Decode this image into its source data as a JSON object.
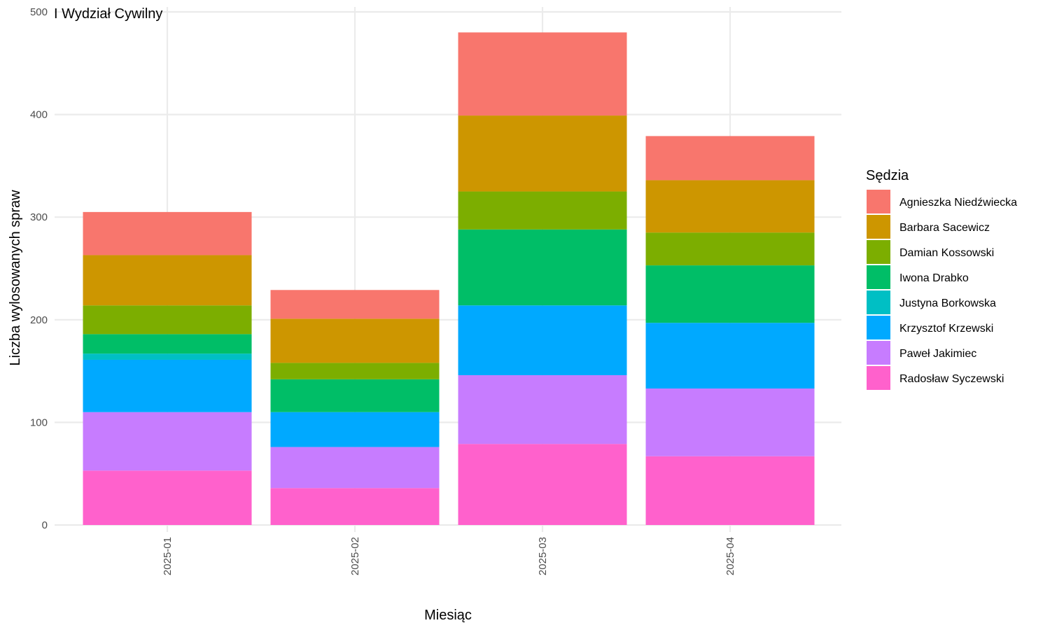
{
  "chart_data": {
    "type": "bar",
    "stacked": true,
    "title": "I Wydział Cywilny",
    "xlabel": "Miesiąc",
    "ylabel": "Liczba wylosowanych spraw",
    "ylim": [
      0,
      500
    ],
    "yticks": [
      0,
      100,
      200,
      300,
      400,
      500
    ],
    "grid": true,
    "legend": {
      "title": "Sędzia",
      "position": "right"
    },
    "categories": [
      "2025-01",
      "2025-02",
      "2025-03",
      "2025-04"
    ],
    "series": [
      {
        "name": "Radosław Syczewski",
        "color": "#FF61CC",
        "values": [
          53,
          36,
          79,
          67
        ]
      },
      {
        "name": "Paweł Jakimiec",
        "color": "#C77CFF",
        "values": [
          57,
          40,
          67,
          66
        ]
      },
      {
        "name": "Krzysztof Krzewski",
        "color": "#00A9FF",
        "values": [
          51,
          34,
          68,
          64
        ]
      },
      {
        "name": "Justyna Borkowska",
        "color": "#00BFC4",
        "values": [
          6,
          0,
          0,
          0
        ]
      },
      {
        "name": "Iwona Drabko",
        "color": "#00BE67",
        "values": [
          19,
          32,
          74,
          56
        ]
      },
      {
        "name": "Damian Kossowski",
        "color": "#7CAE00",
        "values": [
          28,
          16,
          37,
          32
        ]
      },
      {
        "name": "Barbara Sacewicz",
        "color": "#CD9600",
        "values": [
          49,
          43,
          74,
          51
        ]
      },
      {
        "name": "Agnieszka Niedźwiecka",
        "color": "#F8766D",
        "values": [
          42,
          28,
          81,
          43
        ]
      }
    ],
    "legend_order": [
      "Agnieszka Niedźwiecka",
      "Barbara Sacewicz",
      "Damian Kossowski",
      "Iwona Drabko",
      "Justyna Borkowska",
      "Krzysztof Krzewski",
      "Paweł Jakimiec",
      "Radosław Syczewski"
    ]
  }
}
